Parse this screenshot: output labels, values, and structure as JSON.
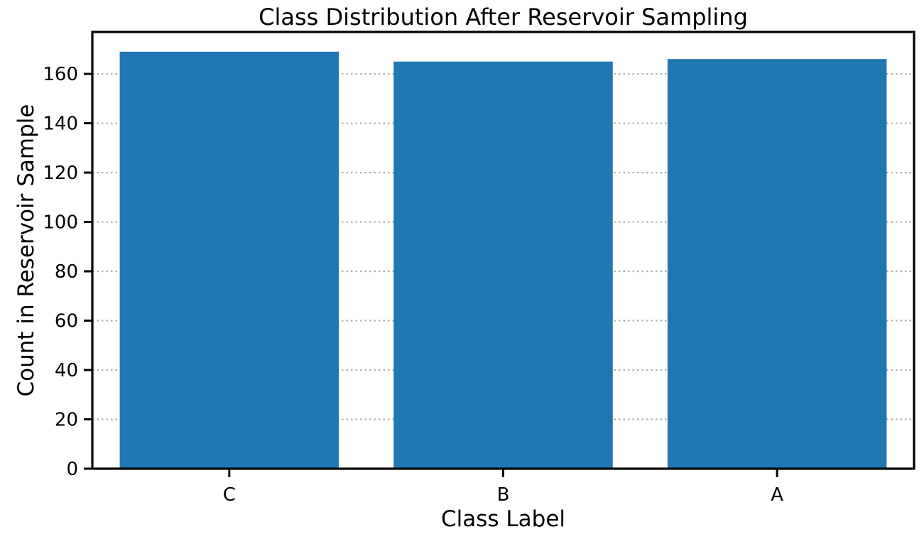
{
  "chart_data": {
    "type": "bar",
    "title": "Class Distribution After Reservoir Sampling",
    "xlabel": "Class Label",
    "ylabel": "Count in Reservoir Sample",
    "categories": [
      "C",
      "B",
      "A"
    ],
    "values": [
      169,
      165,
      166
    ],
    "ylim": [
      0,
      177
    ],
    "yticks": [
      0,
      20,
      40,
      60,
      80,
      100,
      120,
      140,
      160
    ],
    "grid": "y-dotted",
    "bar_color": "#1f77b4"
  }
}
